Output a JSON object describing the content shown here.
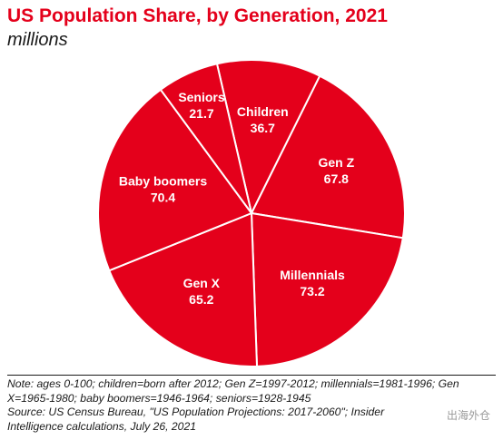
{
  "chart_data": {
    "type": "pie",
    "title": "US Population Share, by Generation, 2021",
    "subtitle": "millions",
    "slices": [
      {
        "label": "Children",
        "value": 36.7
      },
      {
        "label": "Gen Z",
        "value": 67.8
      },
      {
        "label": "Millennials",
        "value": 73.2
      },
      {
        "label": "Gen X",
        "value": 65.2
      },
      {
        "label": "Baby boomers",
        "value": 70.4
      },
      {
        "label": "Seniors",
        "value": 21.7
      }
    ],
    "colors": {
      "slice": "#e4001b",
      "separator": "#ffffff",
      "title": "#e4001b"
    }
  },
  "footer": {
    "note": "Note: ages 0-100; children=born after 2012; Gen Z=1997-2012; millennials=1981-1996; Gen X=1965-1980; baby boomers=1946-1964; seniors=1928-1945",
    "source": "Source: US Census Bureau, \"US Population Projections: 2017-2060\"; Insider Intelligence calculations, July 26, 2021"
  },
  "watermark": "出海外仓"
}
